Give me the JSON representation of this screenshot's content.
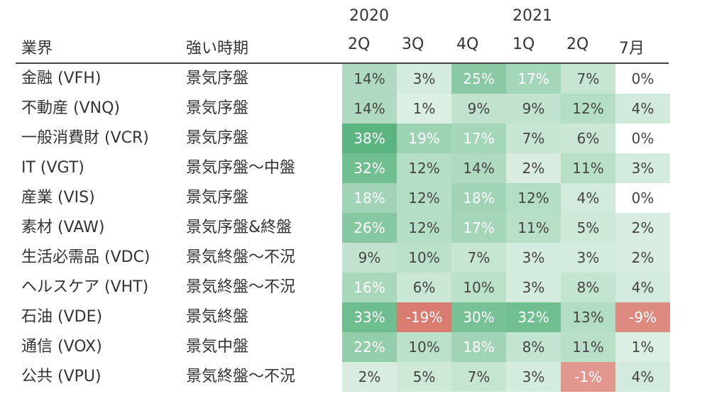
{
  "chart_data": {
    "type": "table",
    "year_labels": [
      "2020",
      "2021"
    ],
    "columns": [
      "業界",
      "強い時期",
      "2Q",
      "3Q",
      "4Q",
      "1Q",
      "2Q",
      "7月"
    ],
    "rows": [
      {
        "sector": "金融 (VFH)",
        "period": "景気序盤",
        "values": [
          "14%",
          "3%",
          "25%",
          "17%",
          "7%",
          "0%"
        ]
      },
      {
        "sector": "不動産 (VNQ)",
        "period": "景気序盤",
        "values": [
          "14%",
          "1%",
          "9%",
          "9%",
          "12%",
          "4%"
        ]
      },
      {
        "sector": "一般消費財 (VCR)",
        "period": "景気序盤",
        "values": [
          "38%",
          "19%",
          "17%",
          "7%",
          "6%",
          "0%"
        ]
      },
      {
        "sector": "IT (VGT)",
        "period": "景気序盤〜中盤",
        "values": [
          "32%",
          "12%",
          "14%",
          "2%",
          "11%",
          "3%"
        ]
      },
      {
        "sector": "産業 (VIS)",
        "period": "景気序盤",
        "values": [
          "18%",
          "12%",
          "18%",
          "12%",
          "4%",
          "0%"
        ]
      },
      {
        "sector": "素材 (VAW)",
        "period": "景気序盤&終盤",
        "values": [
          "26%",
          "12%",
          "17%",
          "11%",
          "5%",
          "2%"
        ]
      },
      {
        "sector": "生活必需品 (VDC)",
        "period": "景気終盤〜不況",
        "values": [
          "9%",
          "10%",
          "7%",
          "3%",
          "3%",
          "2%"
        ]
      },
      {
        "sector": "ヘルスケア (VHT)",
        "period": "景気終盤〜不況",
        "values": [
          "16%",
          "6%",
          "10%",
          "3%",
          "8%",
          "4%"
        ]
      },
      {
        "sector": "石油 (VDE)",
        "period": "景気終盤",
        "values": [
          "33%",
          "-19%",
          "30%",
          "32%",
          "13%",
          "-9%"
        ]
      },
      {
        "sector": "通信 (VOX)",
        "period": "景気中盤",
        "values": [
          "22%",
          "10%",
          "18%",
          "8%",
          "11%",
          "1%"
        ]
      },
      {
        "sector": "公共 (VPU)",
        "period": "景気終盤〜不況",
        "values": [
          "2%",
          "5%",
          "7%",
          "3%",
          "-1%",
          "4%"
        ]
      }
    ],
    "colors": {
      "positive": "#5cb581",
      "negative": "#d97b6f",
      "neutral": "#ffffff"
    }
  }
}
